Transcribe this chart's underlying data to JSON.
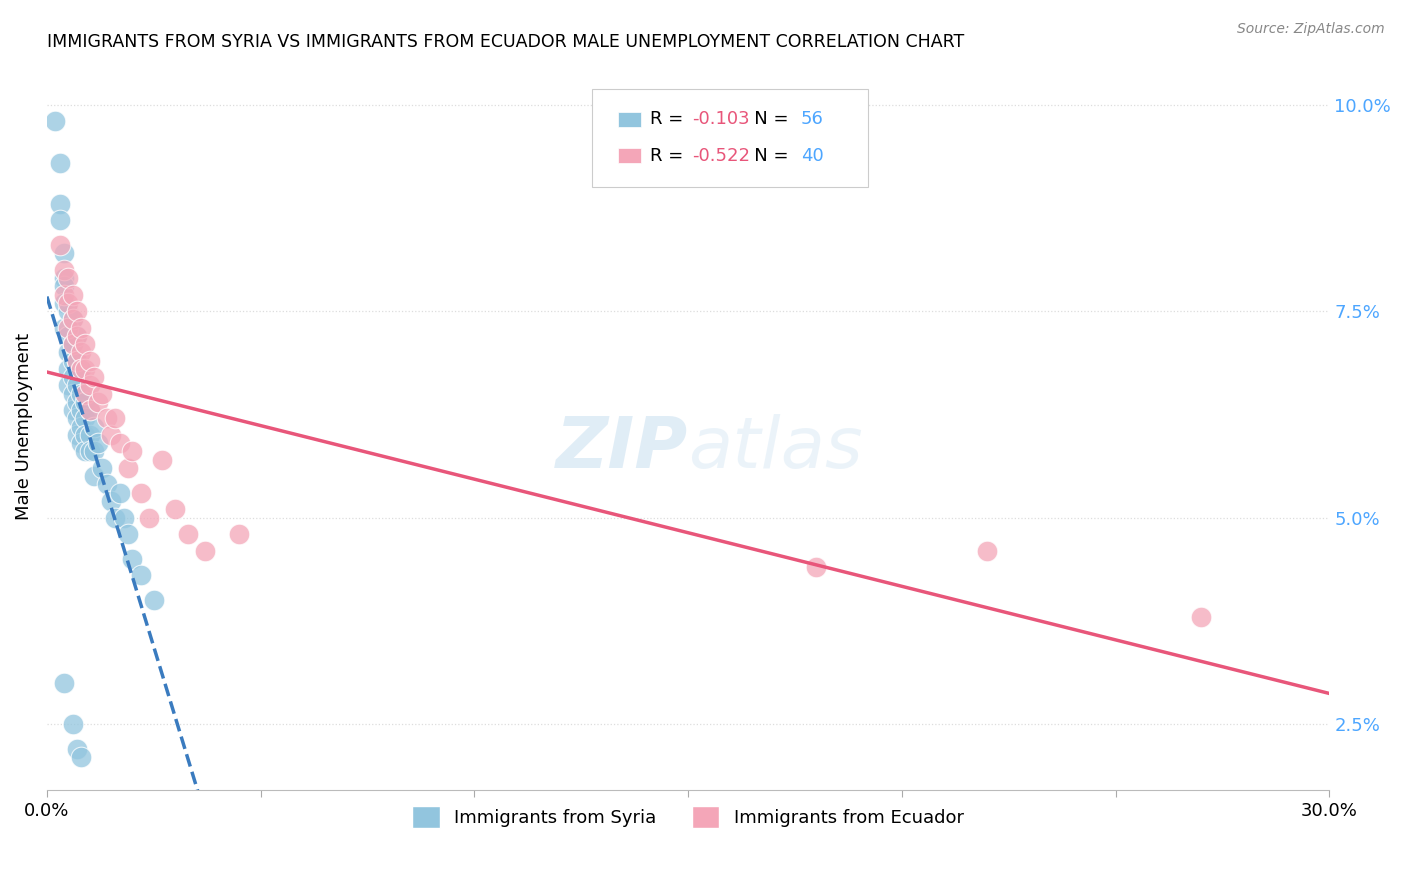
{
  "title": "IMMIGRANTS FROM SYRIA VS IMMIGRANTS FROM ECUADOR MALE UNEMPLOYMENT CORRELATION CHART",
  "source": "Source: ZipAtlas.com",
  "ylabel": "Male Unemployment",
  "syria_color": "#92c5de",
  "ecuador_color": "#f4a6b8",
  "syria_trend_color": "#3a7bbf",
  "ecuador_trend_color": "#e8567a",
  "syria_r": "-0.103",
  "syria_n": "56",
  "ecuador_r": "-0.522",
  "ecuador_n": "40",
  "legend_labels_bottom": [
    "Immigrants from Syria",
    "Immigrants from Ecuador"
  ],
  "syria_scatter": [
    [
      0.002,
      0.098
    ],
    [
      0.003,
      0.093
    ],
    [
      0.003,
      0.088
    ],
    [
      0.003,
      0.086
    ],
    [
      0.004,
      0.082
    ],
    [
      0.004,
      0.079
    ],
    [
      0.004,
      0.078
    ],
    [
      0.004,
      0.076
    ],
    [
      0.004,
      0.073
    ],
    [
      0.005,
      0.075
    ],
    [
      0.005,
      0.072
    ],
    [
      0.005,
      0.07
    ],
    [
      0.005,
      0.068
    ],
    [
      0.005,
      0.066
    ],
    [
      0.006,
      0.074
    ],
    [
      0.006,
      0.071
    ],
    [
      0.006,
      0.069
    ],
    [
      0.006,
      0.067
    ],
    [
      0.006,
      0.065
    ],
    [
      0.006,
      0.063
    ],
    [
      0.007,
      0.072
    ],
    [
      0.007,
      0.069
    ],
    [
      0.007,
      0.066
    ],
    [
      0.007,
      0.064
    ],
    [
      0.007,
      0.062
    ],
    [
      0.007,
      0.06
    ],
    [
      0.008,
      0.068
    ],
    [
      0.008,
      0.065
    ],
    [
      0.008,
      0.063
    ],
    [
      0.008,
      0.061
    ],
    [
      0.008,
      0.059
    ],
    [
      0.009,
      0.064
    ],
    [
      0.009,
      0.062
    ],
    [
      0.009,
      0.06
    ],
    [
      0.009,
      0.058
    ],
    [
      0.01,
      0.063
    ],
    [
      0.01,
      0.06
    ],
    [
      0.01,
      0.058
    ],
    [
      0.011,
      0.061
    ],
    [
      0.011,
      0.058
    ],
    [
      0.011,
      0.055
    ],
    [
      0.012,
      0.059
    ],
    [
      0.013,
      0.056
    ],
    [
      0.014,
      0.054
    ],
    [
      0.015,
      0.052
    ],
    [
      0.016,
      0.05
    ],
    [
      0.017,
      0.053
    ],
    [
      0.018,
      0.05
    ],
    [
      0.019,
      0.048
    ],
    [
      0.02,
      0.045
    ],
    [
      0.022,
      0.043
    ],
    [
      0.025,
      0.04
    ],
    [
      0.004,
      0.03
    ],
    [
      0.006,
      0.025
    ],
    [
      0.007,
      0.022
    ],
    [
      0.008,
      0.021
    ]
  ],
  "ecuador_scatter": [
    [
      0.003,
      0.083
    ],
    [
      0.004,
      0.08
    ],
    [
      0.004,
      0.077
    ],
    [
      0.005,
      0.079
    ],
    [
      0.005,
      0.076
    ],
    [
      0.005,
      0.073
    ],
    [
      0.006,
      0.077
    ],
    [
      0.006,
      0.074
    ],
    [
      0.006,
      0.071
    ],
    [
      0.007,
      0.075
    ],
    [
      0.007,
      0.072
    ],
    [
      0.007,
      0.069
    ],
    [
      0.008,
      0.073
    ],
    [
      0.008,
      0.07
    ],
    [
      0.008,
      0.068
    ],
    [
      0.009,
      0.071
    ],
    [
      0.009,
      0.068
    ],
    [
      0.009,
      0.065
    ],
    [
      0.01,
      0.069
    ],
    [
      0.01,
      0.066
    ],
    [
      0.01,
      0.063
    ],
    [
      0.011,
      0.067
    ],
    [
      0.012,
      0.064
    ],
    [
      0.013,
      0.065
    ],
    [
      0.014,
      0.062
    ],
    [
      0.015,
      0.06
    ],
    [
      0.016,
      0.062
    ],
    [
      0.017,
      0.059
    ],
    [
      0.019,
      0.056
    ],
    [
      0.02,
      0.058
    ],
    [
      0.022,
      0.053
    ],
    [
      0.024,
      0.05
    ],
    [
      0.027,
      0.057
    ],
    [
      0.03,
      0.051
    ],
    [
      0.033,
      0.048
    ],
    [
      0.037,
      0.046
    ],
    [
      0.045,
      0.048
    ],
    [
      0.18,
      0.044
    ],
    [
      0.22,
      0.046
    ],
    [
      0.27,
      0.038
    ]
  ],
  "xlim": [
    0.0,
    0.3
  ],
  "ylim": [
    0.017,
    0.105
  ],
  "xtick_vals": [
    0.0,
    0.05,
    0.1,
    0.15,
    0.2,
    0.25,
    0.3
  ],
  "ytick_vals": [
    0.025,
    0.05,
    0.075,
    0.1
  ],
  "ytick_labels": [
    "2.5%",
    "5.0%",
    "7.5%",
    "10.0%"
  ],
  "background_color": "#ffffff",
  "grid_color": "#dddddd",
  "right_axis_color": "#4da6ff"
}
